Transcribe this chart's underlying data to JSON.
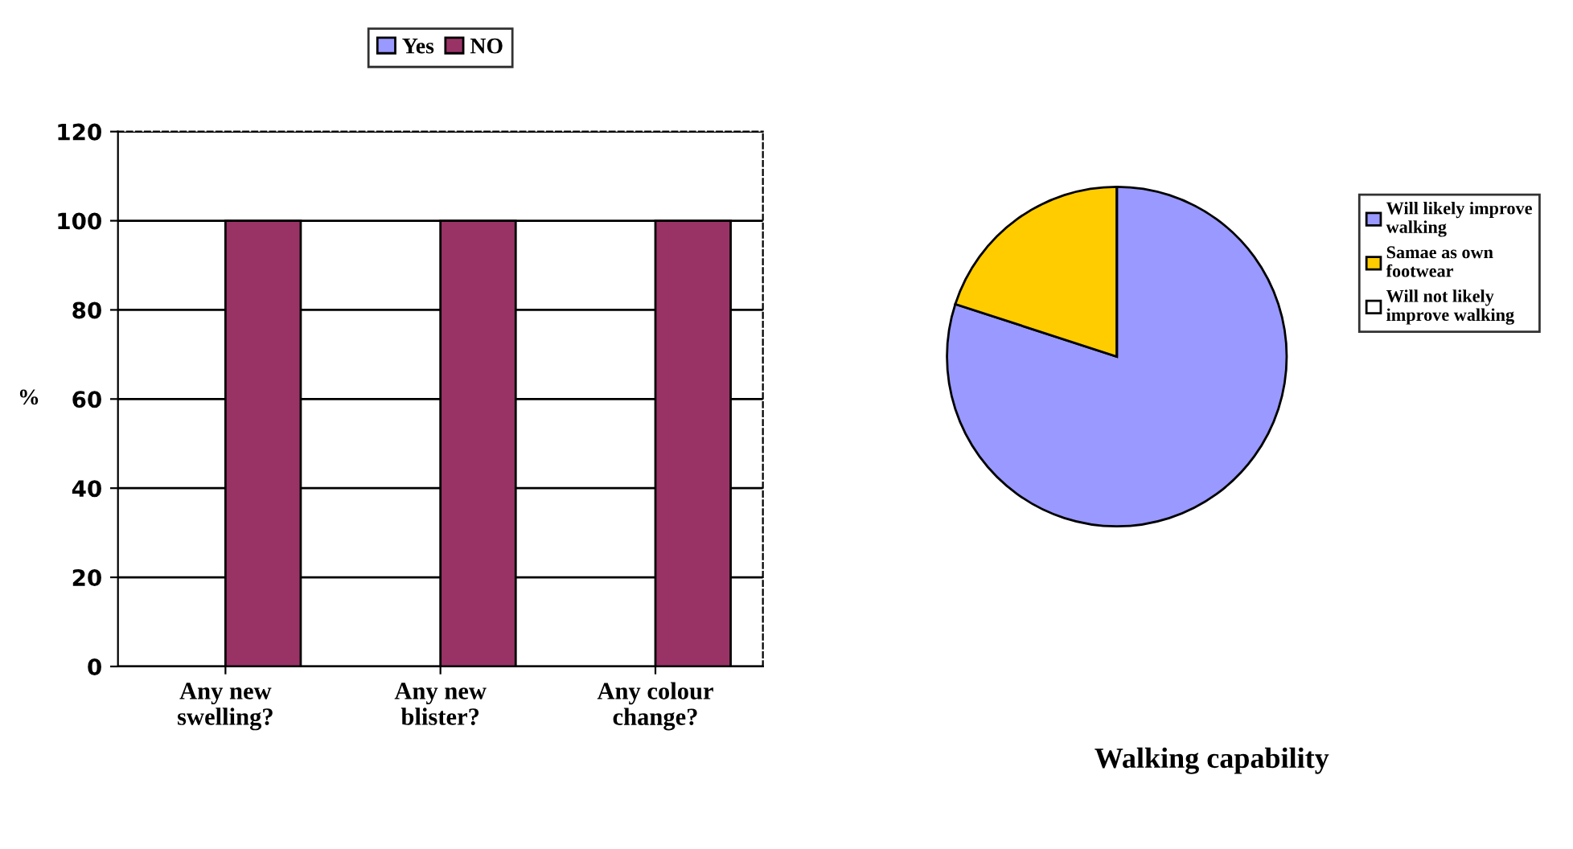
{
  "chart_data": [
    {
      "type": "bar",
      "categories": [
        "Any new\nswelling?",
        "Any new\nblister?",
        "Any colour\nchange?"
      ],
      "ylabel": "%",
      "ylim": [
        0,
        120
      ],
      "yticks": [
        0,
        20,
        40,
        60,
        80,
        100,
        120
      ],
      "grid": "y",
      "legend": "top",
      "series": [
        {
          "name": "Yes",
          "color": "#9999ff",
          "values": [
            0,
            0,
            0
          ]
        },
        {
          "name": "NO",
          "color": "#993366",
          "values": [
            100,
            100,
            100
          ]
        }
      ]
    },
    {
      "type": "pie",
      "title": "Walking capability",
      "categories": [
        "Will likely improve\nwalking",
        "Samae as own\nfootwear",
        "Will not likely\nimprove walking"
      ],
      "values": [
        80,
        20,
        0
      ],
      "colors": [
        "#9999ff",
        "#ffcc00",
        "#ffffff"
      ],
      "legend": "right"
    }
  ]
}
